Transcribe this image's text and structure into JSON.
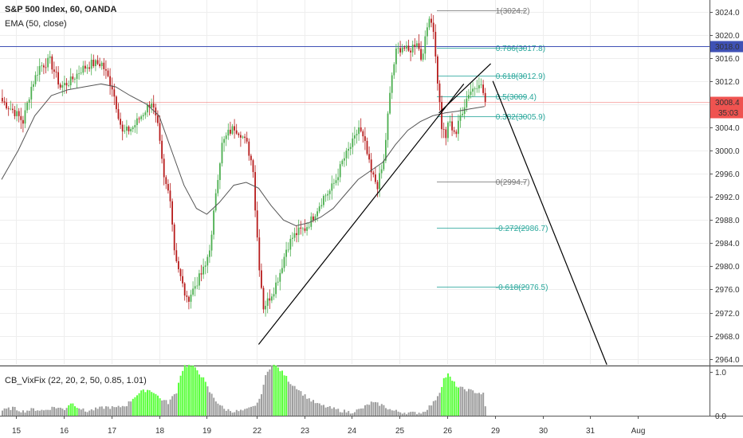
{
  "header": {
    "title": "S&P 500 Index, 60, OANDA",
    "ema_label": "EMA (50, close)"
  },
  "indicator": {
    "label": "CB_VixFix (22, 20, 2, 50, 0.85, 1.01)"
  },
  "colors": {
    "up": "#4caf50",
    "down": "#b71c1c",
    "ema": "#555555",
    "fib": "#26a69a",
    "vix_high": "#5aff3c",
    "vix_normal": "#9e9e9e",
    "last_price": "#ef5350",
    "h_line": "#3f51b5"
  },
  "chart_data": {
    "type": "candlestick",
    "y_ticks": [
      "3024.0",
      "3020.0",
      "3016.0",
      "3012.0",
      "3008.0",
      "3004.0",
      "3000.0",
      "2996.0",
      "2992.0",
      "2988.0",
      "2984.0",
      "2980.0",
      "2976.0",
      "2972.0",
      "2968.0",
      "2964.0"
    ],
    "y_tick_values": [
      3024,
      3020,
      3016,
      3012,
      3008,
      3004,
      3000,
      2996,
      2992,
      2988,
      2984,
      2980,
      2976,
      2972,
      2968,
      2964
    ],
    "ylim": [
      2963,
      3026
    ],
    "x_labels": [
      {
        "label": "15",
        "bar": 7
      },
      {
        "label": "16",
        "bar": 30
      },
      {
        "label": "17",
        "bar": 53
      },
      {
        "label": "18",
        "bar": 76
      },
      {
        "label": "19",
        "bar": 99
      },
      {
        "label": "22",
        "bar": 123
      },
      {
        "label": "23",
        "bar": 146
      },
      {
        "label": "24",
        "bar": 169
      },
      {
        "label": "25",
        "bar": 192
      },
      {
        "label": "26",
        "bar": 215
      },
      {
        "label": "29",
        "bar": 238
      },
      {
        "label": "30",
        "bar": 261
      },
      {
        "label": "31",
        "bar": 284
      },
      {
        "label": "Aug",
        "bar": 307
      }
    ],
    "price_path": [
      [
        0,
        3008.5
      ],
      [
        5,
        3007
      ],
      [
        10,
        3005
      ],
      [
        14,
        3011
      ],
      [
        18,
        3014.5
      ],
      [
        23,
        3015.5
      ],
      [
        28,
        3011
      ],
      [
        33,
        3012
      ],
      [
        38,
        3014
      ],
      [
        43,
        3015
      ],
      [
        48,
        3015
      ],
      [
        53,
        3011
      ],
      [
        58,
        3003
      ],
      [
        63,
        3004
      ],
      [
        67,
        3006
      ],
      [
        72,
        3008.5
      ],
      [
        75,
        3004
      ],
      [
        78,
        2995
      ],
      [
        81,
        2992
      ],
      [
        83,
        2983
      ],
      [
        86,
        2978
      ],
      [
        89,
        2974
      ],
      [
        92,
        2976
      ],
      [
        95,
        2978
      ],
      [
        98,
        2980
      ],
      [
        101,
        2985
      ],
      [
        103,
        2993
      ],
      [
        106,
        3001
      ],
      [
        109,
        3003
      ],
      [
        112,
        3004
      ],
      [
        115,
        3003
      ],
      [
        118,
        3001
      ],
      [
        121,
        2997
      ],
      [
        122,
        2990
      ],
      [
        124,
        2980
      ],
      [
        126,
        2973
      ],
      [
        128,
        2974
      ],
      [
        131,
        2976
      ],
      [
        134,
        2979
      ],
      [
        137,
        2983
      ],
      [
        140,
        2985
      ],
      [
        143,
        2986
      ],
      [
        146,
        2986.5
      ],
      [
        149,
        2988
      ],
      [
        152,
        2990
      ],
      [
        155,
        2992
      ],
      [
        158,
        2993
      ],
      [
        161,
        2995
      ],
      [
        164,
        2998
      ],
      [
        167,
        3000
      ],
      [
        170,
        3002
      ],
      [
        172,
        3004
      ],
      [
        175,
        3001
      ],
      [
        178,
        2996
      ],
      [
        181,
        2994
      ],
      [
        184,
        2998
      ],
      [
        186,
        3006
      ],
      [
        188,
        3013
      ],
      [
        190,
        3017
      ],
      [
        193,
        3018
      ],
      [
        196,
        3017
      ],
      [
        198,
        3018
      ],
      [
        200,
        3019
      ],
      [
        202,
        3016
      ],
      [
        204,
        3019
      ],
      [
        206,
        3023.5
      ],
      [
        208,
        3021
      ],
      [
        209,
        3016
      ],
      [
        211,
        3008
      ],
      [
        212,
        3004
      ],
      [
        214,
        3002
      ],
      [
        215,
        3005
      ],
      [
        217,
        3004
      ],
      [
        219,
        3003
      ],
      [
        221,
        3006
      ],
      [
        223,
        3008
      ],
      [
        225,
        3010
      ],
      [
        228,
        3011
      ],
      [
        230,
        3012
      ],
      [
        232,
        3010
      ],
      [
        233,
        3008.4
      ]
    ],
    "ema_path": [
      [
        0,
        2995
      ],
      [
        8,
        3000
      ],
      [
        16,
        3006
      ],
      [
        24,
        3009.5
      ],
      [
        32,
        3010.5
      ],
      [
        40,
        3011
      ],
      [
        48,
        3011.5
      ],
      [
        55,
        3011
      ],
      [
        62,
        3009.5
      ],
      [
        70,
        3008
      ],
      [
        76,
        3006
      ],
      [
        82,
        3000
      ],
      [
        88,
        2994
      ],
      [
        94,
        2990
      ],
      [
        99,
        2989
      ],
      [
        105,
        2991
      ],
      [
        112,
        2994
      ],
      [
        118,
        2994.5
      ],
      [
        124,
        2993.5
      ],
      [
        130,
        2990.5
      ],
      [
        136,
        2988
      ],
      [
        142,
        2987
      ],
      [
        148,
        2987.5
      ],
      [
        154,
        2988.5
      ],
      [
        160,
        2990
      ],
      [
        166,
        2992.5
      ],
      [
        172,
        2995
      ],
      [
        178,
        2996.5
      ],
      [
        184,
        2998
      ],
      [
        190,
        3001
      ],
      [
        196,
        3003.5
      ],
      [
        202,
        3005
      ],
      [
        208,
        3006
      ],
      [
        214,
        3006.5
      ],
      [
        220,
        3006.8
      ],
      [
        226,
        3007.2
      ],
      [
        233,
        3007.6
      ]
    ],
    "drawings": {
      "support_line": [
        [
          124,
          2966.5
        ],
        [
          223,
          3011.5
        ]
      ],
      "support_line_ext": [
        [
          211,
          3006.5
        ],
        [
          236,
          3015
        ]
      ],
      "projection_line": [
        [
          237,
          3012
        ],
        [
          292,
          2963
        ]
      ]
    },
    "fib_levels": [
      {
        "label": "1(3024.2)",
        "value": 3024.2,
        "color": "#777777"
      },
      {
        "label": "0.786(3017.8)",
        "value": 3017.8,
        "color": "#26a69a"
      },
      {
        "label": "0.618(3012.9)",
        "value": 3012.9,
        "color": "#26a69a"
      },
      {
        "label": "0.5(3009.4)",
        "value": 3009.4,
        "color": "#26a69a"
      },
      {
        "label": "0.382(3005.9)",
        "value": 3005.9,
        "color": "#26a69a"
      },
      {
        "label": "0(2994.7)",
        "value": 2994.7,
        "color": "#777777"
      },
      {
        "label": "-0.272(2986.7)",
        "value": 2986.7,
        "color": "#26a69a"
      },
      {
        "label": "-0.618(2976.5)",
        "value": 2976.5,
        "color": "#26a69a"
      }
    ],
    "fib_start_bar": 210,
    "fib_end_bar": 253,
    "horizontal_line": {
      "value": 3018.0,
      "label": "3018.0"
    },
    "last_price": {
      "value": 3008.4,
      "label": "3008.4",
      "countdown": "35:03"
    },
    "vix": {
      "ylim": [
        0,
        1.1
      ],
      "y_ticks": [
        "1.0",
        "0.0"
      ],
      "y_tick_values": [
        1.0,
        0.0
      ],
      "high_ranges": [
        [
          32,
          36
        ],
        [
          63,
          76
        ],
        [
          85,
          98
        ],
        [
          131,
          137
        ],
        [
          212,
          220
        ]
      ],
      "spikes": [
        [
          0,
          0.12
        ],
        [
          5,
          0.18
        ],
        [
          10,
          0.1
        ],
        [
          15,
          0.15
        ],
        [
          20,
          0.12
        ],
        [
          25,
          0.2
        ],
        [
          30,
          0.15
        ],
        [
          33,
          0.3
        ],
        [
          36,
          0.22
        ],
        [
          40,
          0.1
        ],
        [
          45,
          0.15
        ],
        [
          50,
          0.2
        ],
        [
          55,
          0.18
        ],
        [
          60,
          0.25
        ],
        [
          64,
          0.45
        ],
        [
          67,
          0.55
        ],
        [
          70,
          0.6
        ],
        [
          73,
          0.55
        ],
        [
          76,
          0.4
        ],
        [
          80,
          0.3
        ],
        [
          84,
          0.55
        ],
        [
          86,
          0.95
        ],
        [
          88,
          1.15
        ],
        [
          91,
          1.15
        ],
        [
          94,
          1.05
        ],
        [
          97,
          0.85
        ],
        [
          100,
          0.55
        ],
        [
          103,
          0.35
        ],
        [
          107,
          0.15
        ],
        [
          112,
          0.1
        ],
        [
          117,
          0.12
        ],
        [
          121,
          0.2
        ],
        [
          124,
          0.35
        ],
        [
          127,
          0.9
        ],
        [
          130,
          1.2
        ],
        [
          133,
          1.1
        ],
        [
          136,
          0.95
        ],
        [
          139,
          0.75
        ],
        [
          142,
          0.65
        ],
        [
          145,
          0.5
        ],
        [
          149,
          0.35
        ],
        [
          153,
          0.25
        ],
        [
          158,
          0.18
        ],
        [
          163,
          0.12
        ],
        [
          168,
          0.08
        ],
        [
          173,
          0.15
        ],
        [
          178,
          0.3
        ],
        [
          183,
          0.25
        ],
        [
          188,
          0.12
        ],
        [
          193,
          0.08
        ],
        [
          198,
          0.06
        ],
        [
          203,
          0.08
        ],
        [
          208,
          0.3
        ],
        [
          211,
          0.55
        ],
        [
          213,
          0.85
        ],
        [
          215,
          0.95
        ],
        [
          217,
          0.8
        ],
        [
          220,
          0.65
        ],
        [
          224,
          0.6
        ],
        [
          228,
          0.55
        ],
        [
          232,
          0.5
        ],
        [
          233,
          0.2
        ]
      ]
    }
  }
}
